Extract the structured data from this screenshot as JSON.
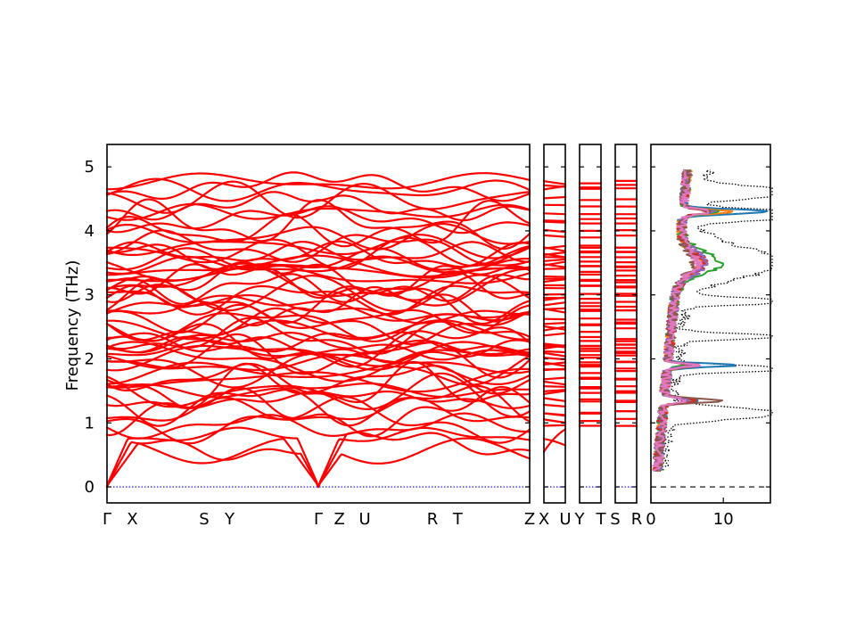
{
  "chart_data": {
    "type": "line",
    "ylabel": "Frequency (THz)",
    "ylim": [
      -0.25,
      5.35
    ],
    "y_ticks": [
      "0",
      "1",
      "2",
      "3",
      "4",
      "5"
    ],
    "colors": {
      "bands": "#ff0000",
      "zero_line": "#0000ff",
      "total_dos": "#000000",
      "pdos": [
        "#1f77b4",
        "#ff7f0e",
        "#2ca02c",
        "#d62728",
        "#9467bd",
        "#8c564b",
        "#e377c2"
      ]
    },
    "band_segments": [
      {
        "labels": [
          "Γ",
          "X",
          "S",
          "Y",
          "Γ",
          "Z",
          "U",
          "R",
          "T",
          "Z"
        ],
        "label_positions": [
          0,
          0.06,
          0.23,
          0.29,
          0.5,
          0.55,
          0.61,
          0.77,
          0.83,
          1.0
        ]
      },
      {
        "labels": [
          "X",
          "U"
        ],
        "label_positions": [
          0,
          1
        ]
      },
      {
        "labels": [
          "Y",
          "T"
        ],
        "label_positions": [
          0,
          1
        ]
      },
      {
        "labels": [
          "S",
          "R"
        ],
        "label_positions": [
          0,
          1
        ]
      }
    ],
    "dos_panel": {
      "x_ticks": [
        "0",
        "10"
      ],
      "xlim": [
        0,
        16.5
      ]
    }
  }
}
